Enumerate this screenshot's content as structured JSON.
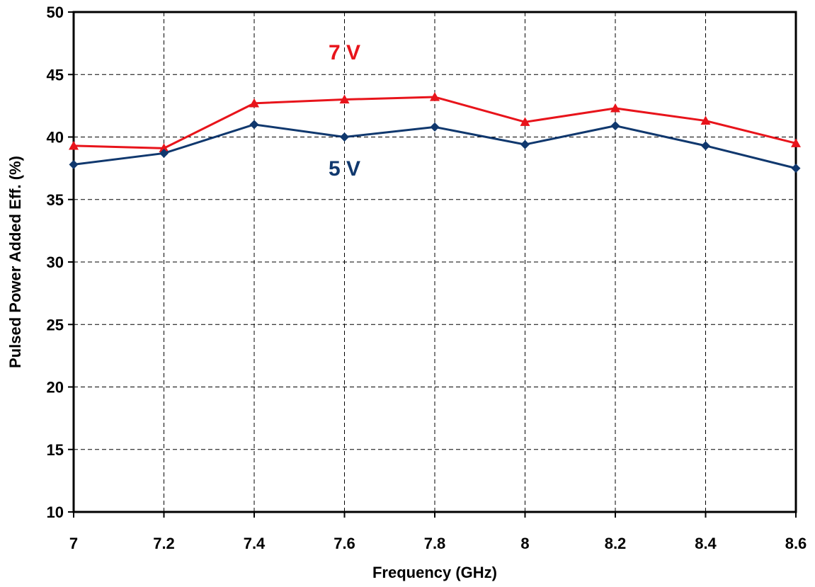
{
  "chart_data": {
    "type": "line",
    "title": "",
    "xlabel": "Frequency (GHz)",
    "ylabel": "Pulsed Power Added Eff. (%)",
    "x": [
      7,
      7.2,
      7.4,
      7.6,
      7.8,
      8,
      8.2,
      8.4,
      8.6
    ],
    "x_tick_labels": [
      "7",
      "7.2",
      "7.4",
      "7.6",
      "7.8",
      "8",
      "8.2",
      "8.4",
      "8.6"
    ],
    "xlim": [
      7,
      8.6
    ],
    "ylim": [
      10,
      50
    ],
    "y_ticks": [
      10,
      15,
      20,
      25,
      30,
      35,
      40,
      45,
      50
    ],
    "grid": true,
    "series": [
      {
        "name": "7 V",
        "color": "#e8141b",
        "marker": "triangle",
        "values": [
          39.3,
          39.1,
          42.7,
          43.0,
          43.2,
          41.2,
          42.3,
          41.3,
          39.5
        ]
      },
      {
        "name": "5 V",
        "color": "#10386e",
        "marker": "diamond",
        "values": [
          37.8,
          38.7,
          41.0,
          40.0,
          40.8,
          39.4,
          40.9,
          39.3,
          37.5
        ]
      }
    ],
    "annotations": [
      {
        "text": "7 V",
        "color": "#e8141b",
        "x": 7.6,
        "y": 46.2
      },
      {
        "text": "5 V",
        "color": "#10386e",
        "x": 7.6,
        "y": 36.9
      }
    ]
  }
}
